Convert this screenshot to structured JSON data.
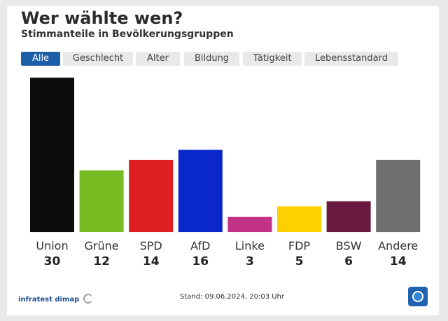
{
  "header": {
    "title": "Wer wählte wen?",
    "subtitle": "Stimmanteile in Bevölkerungsgruppen"
  },
  "tabs": [
    {
      "label": "Alle",
      "active": true
    },
    {
      "label": "Geschlecht",
      "active": false
    },
    {
      "label": "Alter",
      "active": false
    },
    {
      "label": "Bildung",
      "active": false
    },
    {
      "label": "Tätigkeit",
      "active": false
    },
    {
      "label": "Lebensstandard",
      "active": false
    }
  ],
  "chart_data": {
    "type": "bar",
    "categories": [
      "Union",
      "Grüne",
      "SPD",
      "AfD",
      "Linke",
      "FDP",
      "BSW",
      "Andere"
    ],
    "values": [
      30,
      12,
      14,
      16,
      3,
      5,
      6,
      14
    ],
    "colors": [
      "#0d0d0d",
      "#77bb22",
      "#dd1f1f",
      "#0a28c9",
      "#c23387",
      "#fdd100",
      "#6b1a3f",
      "#6f6f6f"
    ],
    "ylim": [
      0,
      30
    ],
    "title": "",
    "xlabel": "",
    "ylabel": ""
  },
  "footer": {
    "brand": "infratest dimap",
    "stand": "Stand: 09.06.2024, 20:03 Uhr"
  },
  "theme": {
    "accent": "#1c5ea8",
    "logo_icon": "tagesschau-logo-icon"
  }
}
